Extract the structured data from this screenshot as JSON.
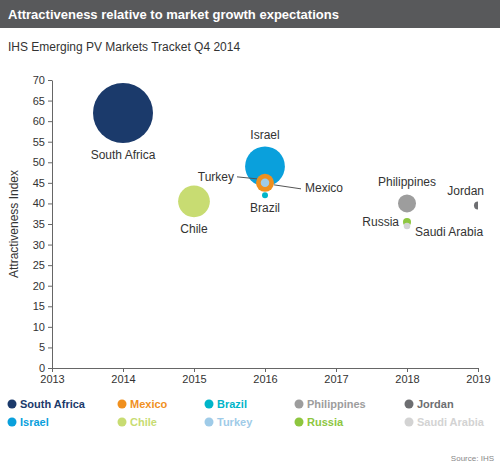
{
  "chart_data": {
    "type": "scatter",
    "title": "Attractiveness relative to market growth expectations",
    "subtitle": "IHS Emerging PV Markets Tracket Q4 2014",
    "y_label": "Attractiveness Index",
    "source": "Source: IHS",
    "xlim": [
      2013,
      2019
    ],
    "xticks": [
      2013,
      2014,
      2015,
      2016,
      2017,
      2018,
      2019
    ],
    "ylim": [
      0,
      70
    ],
    "yticks": [
      0,
      5,
      10,
      15,
      20,
      25,
      30,
      35,
      40,
      45,
      50,
      55,
      60,
      65,
      70
    ],
    "grid": false,
    "legend": "bottom",
    "series": [
      {
        "name": "South Africa",
        "color": "#1b3a6b",
        "x": [
          2014
        ],
        "values": [
          62
        ],
        "sizes": [
          100
        ]
      },
      {
        "name": "Israel",
        "color": "#0aa0dc",
        "x": [
          2016
        ],
        "values": [
          49
        ],
        "sizes": [
          44
        ]
      },
      {
        "name": "Mexico",
        "color": "#f0901e",
        "x": [
          2016
        ],
        "values": [
          45
        ],
        "sizes": [
          9
        ]
      },
      {
        "name": "Chile",
        "color": "#c8dc72",
        "x": [
          2015
        ],
        "values": [
          40.5
        ],
        "sizes": [
          28
        ]
      },
      {
        "name": "Brazil",
        "color": "#00b5c9",
        "x": [
          2016
        ],
        "values": [
          42
        ],
        "sizes": [
          1
        ]
      },
      {
        "name": "Turkey",
        "color": "#9fcbe8",
        "x": [
          2016
        ],
        "values": [
          45
        ],
        "sizes": [
          2
        ]
      },
      {
        "name": "Philippines",
        "color": "#9d9d9d",
        "x": [
          2018
        ],
        "values": [
          40
        ],
        "sizes": [
          9
        ]
      },
      {
        "name": "Russia",
        "color": "#8dc63f",
        "x": [
          2018
        ],
        "values": [
          35.5
        ],
        "sizes": [
          1.8
        ]
      },
      {
        "name": "Jordan",
        "color": "#6d6e71",
        "x": [
          2019
        ],
        "values": [
          39.5
        ],
        "sizes": [
          1.8
        ]
      },
      {
        "name": "Saudi Arabia",
        "color": "#d3d3d3",
        "x": [
          2018
        ],
        "values": [
          34.5
        ],
        "sizes": [
          1.2
        ]
      }
    ]
  }
}
